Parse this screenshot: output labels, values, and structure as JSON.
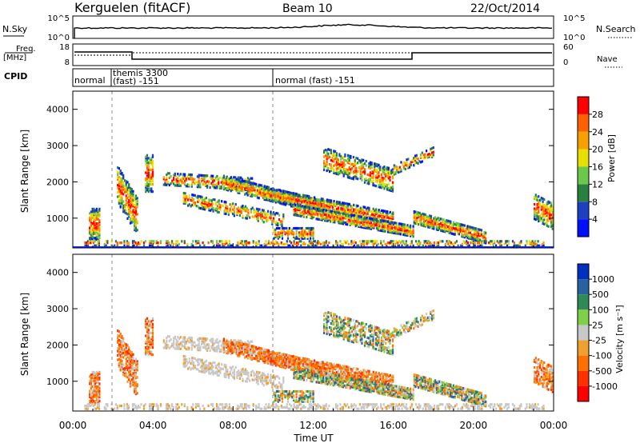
{
  "header": {
    "station": "Kerguelen (fitACF)",
    "beam": "Beam 10",
    "date": "22/Oct/2014"
  },
  "noise_panel": {
    "left_label": "N.Sky",
    "right_label": "N.Search",
    "left_top_tick": "10^5",
    "left_bottom_tick": "10^0",
    "right_top_tick": "10^5",
    "right_bottom_tick": "10^0"
  },
  "freq_panel": {
    "left_label_1": "Freq.",
    "left_label_2": "[MHz]",
    "right_label": "Nave",
    "left_top_tick": "18",
    "left_bottom_tick": "8",
    "right_top_tick": "60",
    "right_bottom_tick": "0"
  },
  "cpid_panel": {
    "label": "CPID",
    "modes": [
      {
        "line1": "normal",
        "line2": "",
        "start_hour": 0.0
      },
      {
        "line1": "themis 3300",
        "line2": "(fast) -151",
        "start_hour": 1.95
      },
      {
        "line1": "normal (fast) -151",
        "line2": "",
        "start_hour": 10.0
      }
    ]
  },
  "chart_data": [
    {
      "type": "heatmap",
      "name": "power",
      "ylabel": "Slant Range [km]",
      "xlabel": "",
      "y_ticks": [
        "1000",
        "2000",
        "3000",
        "4000"
      ],
      "y_tick_values": [
        1000,
        2000,
        3000,
        4000
      ],
      "ylim": [
        180,
        4500
      ],
      "x_hours": [
        0,
        24
      ],
      "colorbar": {
        "label": "Power [dB]",
        "ticks": [
          "4",
          "8",
          "12",
          "16",
          "20",
          "24",
          "28"
        ],
        "colors": [
          "#0010ff",
          "#1e40c0",
          "#2a8040",
          "#6bc84a",
          "#e8e000",
          "#f8a000",
          "#ff6000",
          "#ff0000"
        ]
      }
    },
    {
      "type": "heatmap",
      "name": "velocity",
      "ylabel": "Slant Range [km]",
      "xlabel": "Time UT",
      "x_ticks": [
        "00:00",
        "04:00",
        "08:00",
        "12:00",
        "16:00",
        "20:00",
        "00:00"
      ],
      "x_tick_hours": [
        0,
        4,
        8,
        12,
        16,
        20,
        24
      ],
      "y_ticks": [
        "1000",
        "2000",
        "3000",
        "4000"
      ],
      "y_tick_values": [
        1000,
        2000,
        3000,
        4000
      ],
      "ylim": [
        180,
        4500
      ],
      "colorbar": {
        "label": "Velocity [m s⁻¹]",
        "ticks": [
          "1000",
          "500",
          "100",
          "25",
          "-25",
          "-100",
          "-500",
          "-1000"
        ],
        "colors": [
          "#0030c0",
          "#2860a0",
          "#2e8b57",
          "#7ed048",
          "#c8c8c8",
          "#f0a030",
          "#ff7000",
          "#ff3000",
          "#ff0000"
        ]
      }
    }
  ]
}
